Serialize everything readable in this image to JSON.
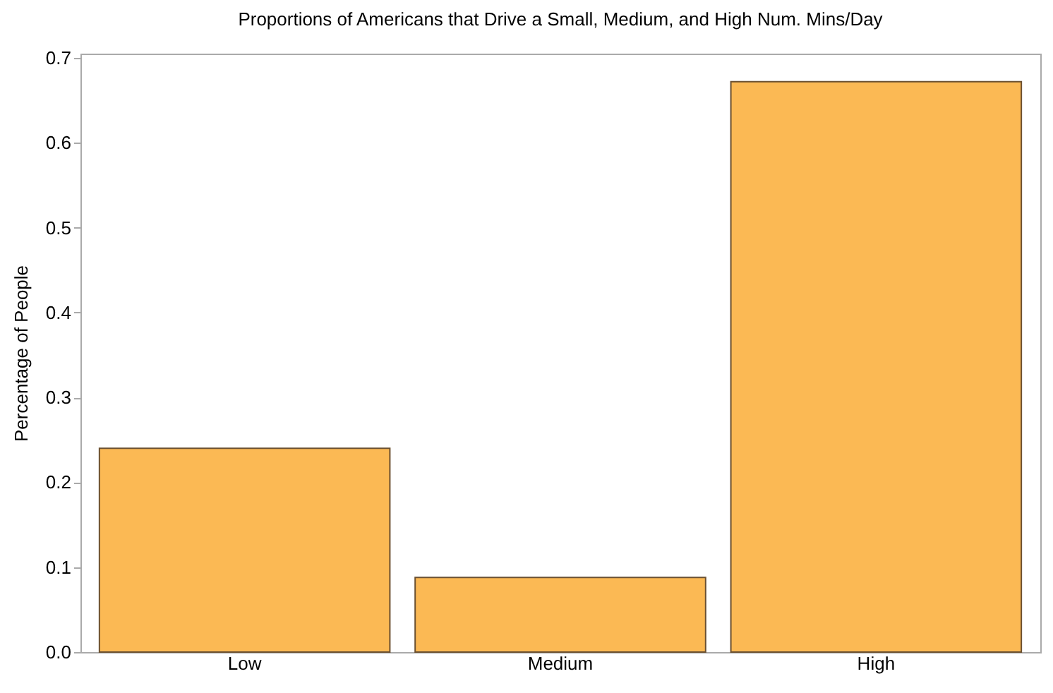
{
  "chart_data": {
    "type": "bar",
    "title": "Proportions of Americans that Drive a Small, Medium, and High Num. Mins/Day",
    "ylabel": "Percentage of People",
    "categories": [
      "Low",
      "Medium",
      "High"
    ],
    "values": [
      0.24,
      0.088,
      0.672
    ],
    "color": "#fbb954",
    "ylim": [
      0,
      0.705
    ],
    "yticks": [
      {
        "value": 0,
        "label": "0.0"
      },
      0.1,
      0.2,
      0.3,
      0.4,
      0.5,
      0.6,
      0.7
    ],
    "grid": false
  }
}
